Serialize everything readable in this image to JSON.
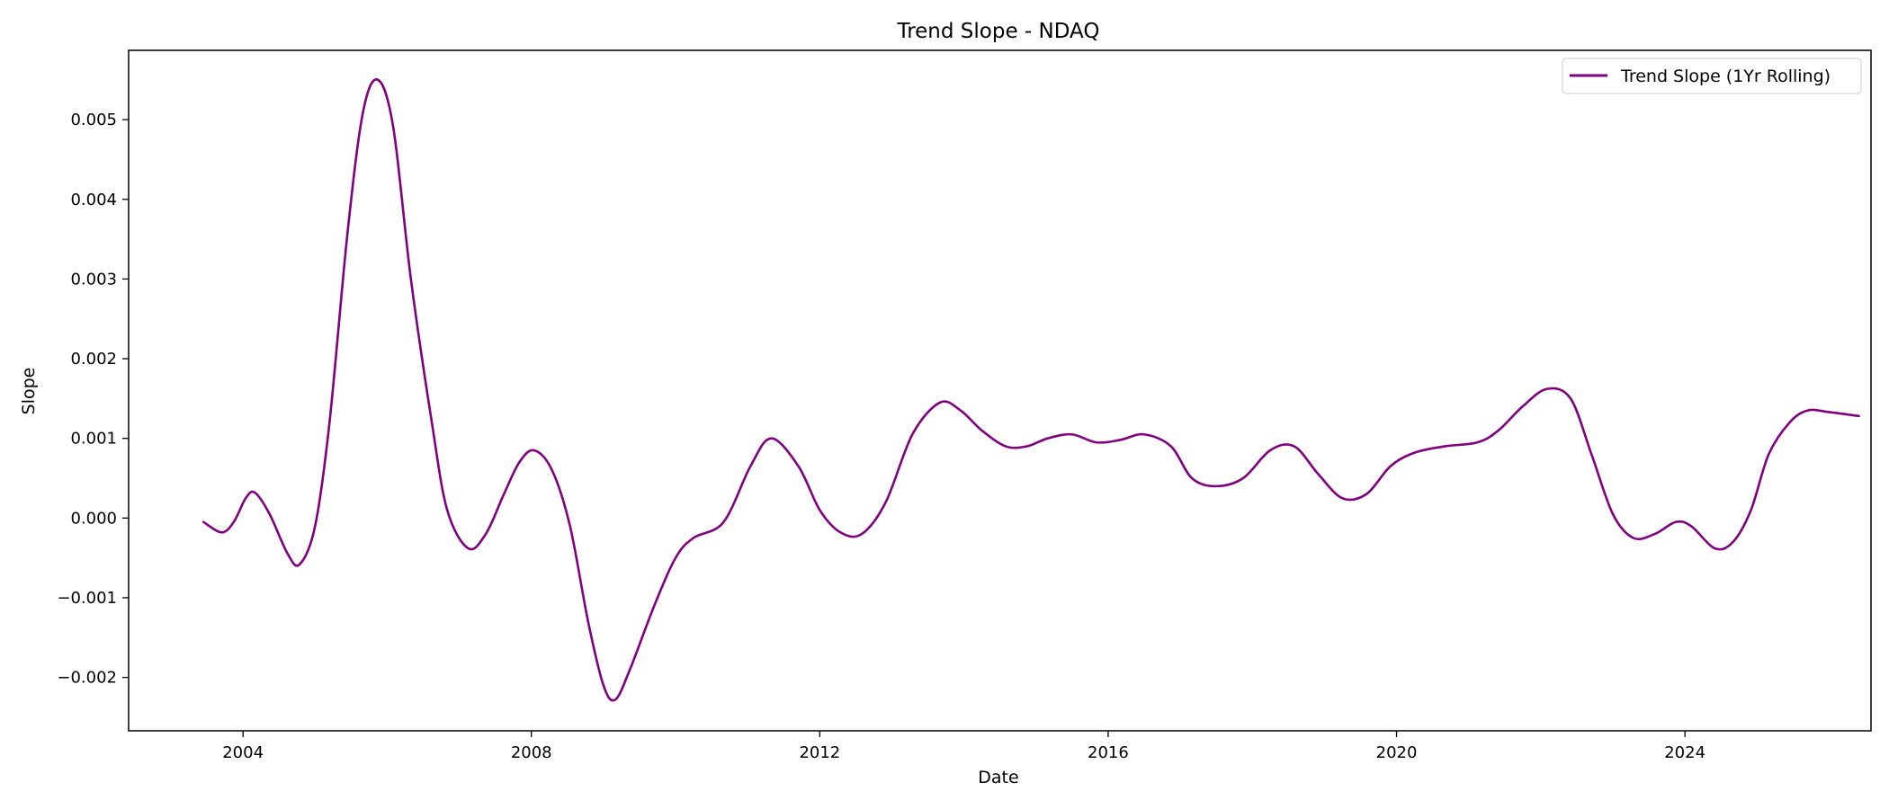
{
  "chart_data": {
    "type": "line",
    "title": "Trend Slope - NDAQ",
    "xlabel": "Date",
    "ylabel": "Slope",
    "xlim": [
      "2002-06-01",
      "2026-08-01"
    ],
    "ylim": [
      -0.00267,
      0.00587
    ],
    "x_ticks": [
      "2004",
      "2008",
      "2012",
      "2016",
      "2020",
      "2024"
    ],
    "y_ticks": [
      "-0.002",
      "-0.001",
      "0.000",
      "0.001",
      "0.002",
      "0.003",
      "0.004",
      "0.005"
    ],
    "y_tick_values": [
      -0.002,
      -0.001,
      0.0,
      0.001,
      0.002,
      0.003,
      0.004,
      0.005
    ],
    "grid": false,
    "legend_position": "top-right",
    "series": [
      {
        "name": "Trend Slope (1Yr Rolling)",
        "color": "#800080",
        "points": [
          [
            "2003-06-15",
            -5e-05
          ],
          [
            "2003-09-15",
            -0.00018
          ],
          [
            "2003-11-15",
            -5e-05
          ],
          [
            "2004-01-15",
            0.00025
          ],
          [
            "2004-03-01",
            0.00032
          ],
          [
            "2004-05-15",
            5e-05
          ],
          [
            "2004-08-15",
            -0.00045
          ],
          [
            "2004-10-15",
            -0.00058
          ],
          [
            "2005-01-01",
            -0.0001
          ],
          [
            "2005-03-15",
            0.0012
          ],
          [
            "2005-06-15",
            0.0036
          ],
          [
            "2005-09-01",
            0.0051
          ],
          [
            "2005-11-15",
            0.0055
          ],
          [
            "2006-02-01",
            0.0049
          ],
          [
            "2006-05-01",
            0.003
          ],
          [
            "2006-08-15",
            0.0012
          ],
          [
            "2006-11-01",
            0.0001
          ],
          [
            "2007-02-15",
            -0.00038
          ],
          [
            "2007-05-15",
            -0.0002
          ],
          [
            "2007-08-15",
            0.0003
          ],
          [
            "2007-11-01",
            0.0007
          ],
          [
            "2008-01-15",
            0.00085
          ],
          [
            "2008-04-15",
            0.0006
          ],
          [
            "2008-07-15",
            -0.0001
          ],
          [
            "2008-10-15",
            -0.0013
          ],
          [
            "2009-01-01",
            -0.0021
          ],
          [
            "2009-03-01",
            -0.00228
          ],
          [
            "2009-05-15",
            -0.0019
          ],
          [
            "2009-09-15",
            -0.0011
          ],
          [
            "2010-01-01",
            -0.0005
          ],
          [
            "2010-04-01",
            -0.00025
          ],
          [
            "2010-09-01",
            -5e-05
          ],
          [
            "2011-01-15",
            0.00065
          ],
          [
            "2011-05-01",
            0.001
          ],
          [
            "2011-09-15",
            0.00065
          ],
          [
            "2012-01-01",
            0.0001
          ],
          [
            "2012-04-15",
            -0.00018
          ],
          [
            "2012-08-01",
            -0.0002
          ],
          [
            "2012-12-01",
            0.0002
          ],
          [
            "2013-04-15",
            0.00105
          ],
          [
            "2013-09-01",
            0.00145
          ],
          [
            "2013-12-15",
            0.00135
          ],
          [
            "2014-04-01",
            0.0011
          ],
          [
            "2014-08-01",
            0.0009
          ],
          [
            "2014-11-15",
            0.0009
          ],
          [
            "2015-03-01",
            0.001
          ],
          [
            "2015-07-01",
            0.00105
          ],
          [
            "2015-11-01",
            0.00095
          ],
          [
            "2016-03-01",
            0.00098
          ],
          [
            "2016-07-01",
            0.00105
          ],
          [
            "2016-11-15",
            0.0009
          ],
          [
            "2017-03-01",
            0.0005
          ],
          [
            "2017-07-01",
            0.0004
          ],
          [
            "2017-11-15",
            0.0005
          ],
          [
            "2018-04-01",
            0.00085
          ],
          [
            "2018-08-01",
            0.0009
          ],
          [
            "2018-12-01",
            0.00055
          ],
          [
            "2019-04-01",
            0.00025
          ],
          [
            "2019-08-01",
            0.0003
          ],
          [
            "2019-12-01",
            0.00065
          ],
          [
            "2020-04-01",
            0.00082
          ],
          [
            "2020-09-01",
            0.0009
          ],
          [
            "2021-02-15",
            0.00095
          ],
          [
            "2021-06-01",
            0.0011
          ],
          [
            "2021-10-01",
            0.0014
          ],
          [
            "2022-02-01",
            0.00162
          ],
          [
            "2022-06-01",
            0.0015
          ],
          [
            "2022-09-15",
            0.0008
          ],
          [
            "2023-01-01",
            5e-05
          ],
          [
            "2023-04-15",
            -0.00025
          ],
          [
            "2023-08-01",
            -0.0002
          ],
          [
            "2023-11-15",
            -5e-05
          ],
          [
            "2024-02-01",
            -0.0001
          ],
          [
            "2024-06-01",
            -0.00038
          ],
          [
            "2024-09-01",
            -0.0003
          ],
          [
            "2024-12-01",
            0.0001
          ],
          [
            "2025-03-01",
            0.0008
          ],
          [
            "2025-06-15",
            0.0012
          ],
          [
            "2025-09-15",
            0.00135
          ],
          [
            "2026-01-01",
            0.00133
          ],
          [
            "2026-06-01",
            0.00128
          ]
        ]
      }
    ]
  }
}
